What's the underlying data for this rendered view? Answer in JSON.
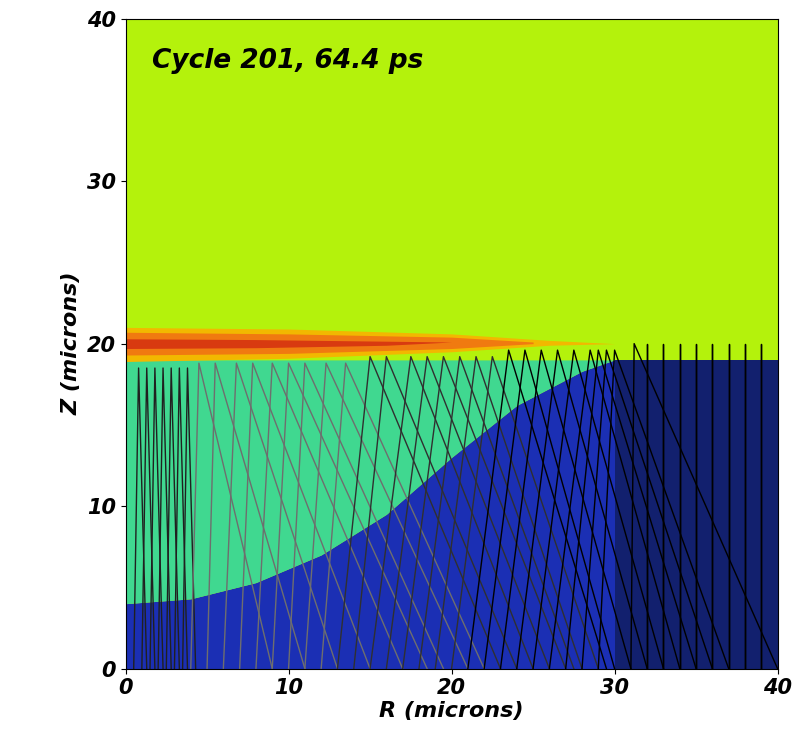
{
  "chart_data": {
    "type": "field",
    "annotation": "Cycle 201, 64.4 ps",
    "xlabel": "R (microns)",
    "ylabel": "Z (microns)",
    "xlim": [
      0,
      40
    ],
    "ylim": [
      0,
      40
    ],
    "xticks": [
      0,
      10,
      20,
      30,
      40
    ],
    "yticks": [
      0,
      10,
      20,
      30,
      40
    ],
    "background_color": "#b4f20c",
    "regions": [
      {
        "color": "#1b2fb4",
        "r": [
          0,
          4,
          8,
          12,
          16,
          20,
          24,
          28,
          30,
          40
        ],
        "z_bottom": [
          0,
          0,
          0,
          0,
          0,
          0,
          0,
          0,
          0,
          0
        ],
        "z_top": [
          4,
          4.3,
          5.3,
          7,
          9.5,
          13,
          16.2,
          18.3,
          19,
          19
        ]
      },
      {
        "color": "#40d890",
        "r": [
          0,
          4,
          8,
          12,
          16,
          20,
          24,
          28,
          30
        ],
        "z_bottom": [
          4,
          4.3,
          5.3,
          7,
          9.5,
          13,
          16.2,
          18.3,
          19
        ],
        "z_top": [
          19,
          19,
          19,
          19,
          19,
          19,
          19,
          19,
          19
        ]
      },
      {
        "color": "#12206e",
        "r": [
          30,
          40
        ],
        "z_bottom": [
          0,
          0
        ],
        "z_top": [
          19,
          19
        ]
      },
      {
        "color": "#f2b800",
        "r": [
          0,
          10,
          20,
          26,
          30
        ],
        "z_bottom": [
          18.9,
          19.1,
          19.5,
          19.9,
          20
        ],
        "z_top": [
          21,
          20.9,
          20.6,
          20.2,
          20
        ]
      },
      {
        "color": "#f07a10",
        "r": [
          0,
          10,
          20,
          25
        ],
        "z_bottom": [
          19.3,
          19.4,
          19.7,
          20
        ],
        "z_top": [
          20.7,
          20.6,
          20.4,
          20.1
        ]
      },
      {
        "color": "#d83a10",
        "r": [
          0,
          8,
          16,
          20
        ],
        "z_bottom": [
          19.7,
          19.75,
          19.9,
          20.1
        ],
        "z_top": [
          20.3,
          20.25,
          20.15,
          20.1
        ]
      }
    ],
    "rays": [
      {
        "color": "#202020",
        "lines": [
          {
            "r": [
              0.5,
              0.8,
              1.3
            ],
            "z": [
              0,
              18.5,
              0
            ]
          },
          {
            "r": [
              1,
              1.3,
              1.8
            ],
            "z": [
              0,
              18.5,
              0
            ]
          },
          {
            "r": [
              1.5,
              1.8,
              2.3
            ],
            "z": [
              0,
              18.5,
              0
            ]
          },
          {
            "r": [
              2,
              2.3,
              2.8
            ],
            "z": [
              0,
              18.5,
              0
            ]
          },
          {
            "r": [
              2.5,
              2.8,
              3.3
            ],
            "z": [
              0,
              18.5,
              0
            ]
          },
          {
            "r": [
              3,
              3.3,
              3.8
            ],
            "z": [
              0,
              18.5,
              0
            ]
          },
          {
            "r": [
              3.5,
              3.8,
              4.3
            ],
            "z": [
              0,
              18.5,
              0
            ]
          }
        ]
      },
      {
        "color": "#6e6e6e",
        "lines": [
          {
            "r": [
              4,
              4.5,
              9
            ],
            "z": [
              0,
              18.8,
              0
            ]
          },
          {
            "r": [
              5,
              5.5,
              11
            ],
            "z": [
              0,
              18.8,
              0
            ]
          },
          {
            "r": [
              6,
              6.8,
              13
            ],
            "z": [
              0,
              18.8,
              0
            ]
          },
          {
            "r": [
              7,
              7.8,
              15
            ],
            "z": [
              0,
              18.8,
              0
            ]
          },
          {
            "r": [
              8,
              9,
              17
            ],
            "z": [
              0,
              18.8,
              0
            ]
          },
          {
            "r": [
              9,
              10,
              18.5
            ],
            "z": [
              0,
              18.8,
              0
            ]
          },
          {
            "r": [
              10,
              11,
              19.5
            ],
            "z": [
              0,
              18.8,
              0
            ]
          },
          {
            "r": [
              11,
              12.3,
              21
            ],
            "z": [
              0,
              18.8,
              0
            ]
          },
          {
            "r": [
              12,
              13.5,
              22
            ],
            "z": [
              0,
              18.8,
              0
            ]
          }
        ]
      },
      {
        "color": "#303030",
        "lines": [
          {
            "r": [
              13,
              15,
              23
            ],
            "z": [
              0,
              19.2,
              0
            ]
          },
          {
            "r": [
              14,
              16,
              24
            ],
            "z": [
              0,
              19.2,
              0
            ]
          },
          {
            "r": [
              15,
              17.5,
              25
            ],
            "z": [
              0,
              19.2,
              0
            ]
          },
          {
            "r": [
              16,
              18.5,
              26
            ],
            "z": [
              0,
              19.2,
              0
            ]
          },
          {
            "r": [
              17,
              19.5,
              27
            ],
            "z": [
              0,
              19.2,
              0
            ]
          },
          {
            "r": [
              18,
              20.5,
              27.5
            ],
            "z": [
              0,
              19.2,
              0
            ]
          },
          {
            "r": [
              19,
              21.5,
              28
            ],
            "z": [
              0,
              19.2,
              0
            ]
          },
          {
            "r": [
              20,
              22.5,
              29
            ],
            "z": [
              0,
              19.2,
              0
            ]
          }
        ]
      },
      {
        "color": "#000000",
        "lines": [
          {
            "r": [
              21,
              23.5,
              29.5
            ],
            "z": [
              0,
              19.6,
              0
            ]
          },
          {
            "r": [
              22,
              24.5,
              30
            ],
            "z": [
              0,
              19.6,
              0
            ]
          },
          {
            "r": [
              23,
              25.5,
              31
            ],
            "z": [
              0,
              19.6,
              0
            ]
          },
          {
            "r": [
              24,
              26.5,
              32
            ],
            "z": [
              0,
              19.6,
              0
            ]
          },
          {
            "r": [
              25,
              27.5,
              33
            ],
            "z": [
              0,
              19.6,
              0
            ]
          },
          {
            "r": [
              26,
              28.5,
              34
            ],
            "z": [
              0,
              19.6,
              0
            ]
          },
          {
            "r": [
              27,
              29,
              35
            ],
            "z": [
              0,
              19.6,
              0
            ]
          },
          {
            "r": [
              28,
              29.5,
              36
            ],
            "z": [
              0,
              19.6,
              0
            ]
          },
          {
            "r": [
              29,
              30,
              37
            ],
            "z": [
              0,
              19.6,
              0
            ]
          },
          {
            "r": [
              31,
              31.2,
              40
            ],
            "z": [
              0,
              20,
              0
            ]
          },
          {
            "r": [
              32,
              32,
              32
            ],
            "z": [
              0,
              20,
              0
            ]
          },
          {
            "r": [
              33,
              33,
              33
            ],
            "z": [
              0,
              20,
              0
            ]
          },
          {
            "r": [
              34,
              34,
              34
            ],
            "z": [
              0,
              20,
              0
            ]
          },
          {
            "r": [
              35,
              35,
              35
            ],
            "z": [
              0,
              20,
              0
            ]
          },
          {
            "r": [
              36,
              36,
              36
            ],
            "z": [
              0,
              20,
              0
            ]
          },
          {
            "r": [
              37,
              37,
              37
            ],
            "z": [
              0,
              20,
              0
            ]
          },
          {
            "r": [
              38,
              38,
              38
            ],
            "z": [
              0,
              20,
              0
            ]
          },
          {
            "r": [
              39,
              39,
              39
            ],
            "z": [
              0,
              20,
              0
            ]
          }
        ]
      }
    ]
  }
}
